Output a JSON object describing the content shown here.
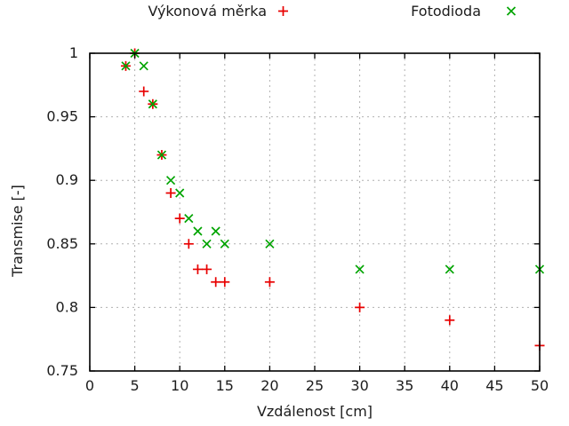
{
  "chart_data": {
    "type": "scatter",
    "title": "",
    "xlabel": "Vzdálenost [cm]",
    "ylabel": "Transmise [-]",
    "xlim": [
      0,
      50
    ],
    "ylim": [
      0.75,
      1.0
    ],
    "xticks": [
      0,
      5,
      10,
      15,
      20,
      25,
      30,
      35,
      40,
      45,
      50
    ],
    "yticks": [
      0.75,
      0.8,
      0.85,
      0.9,
      0.95,
      1
    ],
    "ytick_labels": [
      "0.75",
      "0.8",
      "0.85",
      "0.9",
      "0.95",
      "1"
    ],
    "grid": true,
    "legend_position": "top-outside-horizontal",
    "series": [
      {
        "name": "Výkonová měrka",
        "marker": "plus",
        "color": "#e80000",
        "x": [
          4,
          5,
          6,
          7,
          8,
          9,
          10,
          11,
          12,
          13,
          14,
          15,
          20,
          30,
          40,
          50
        ],
        "y": [
          0.99,
          1.0,
          0.97,
          0.96,
          0.92,
          0.89,
          0.87,
          0.85,
          0.83,
          0.83,
          0.82,
          0.82,
          0.82,
          0.8,
          0.79,
          0.77
        ]
      },
      {
        "name": "Fotodioda",
        "marker": "cross",
        "color": "#00a400",
        "x": [
          4,
          5,
          6,
          7,
          8,
          9,
          10,
          11,
          12,
          13,
          14,
          15,
          20,
          30,
          40,
          50
        ],
        "y": [
          0.99,
          1.0,
          0.99,
          0.96,
          0.92,
          0.9,
          0.89,
          0.87,
          0.86,
          0.85,
          0.86,
          0.85,
          0.85,
          0.83,
          0.83,
          0.83
        ]
      }
    ],
    "colors": {
      "background": "#ffffff",
      "axis": "#000000",
      "grid": "#b0b0b0",
      "text": "#1c1c1c"
    }
  }
}
